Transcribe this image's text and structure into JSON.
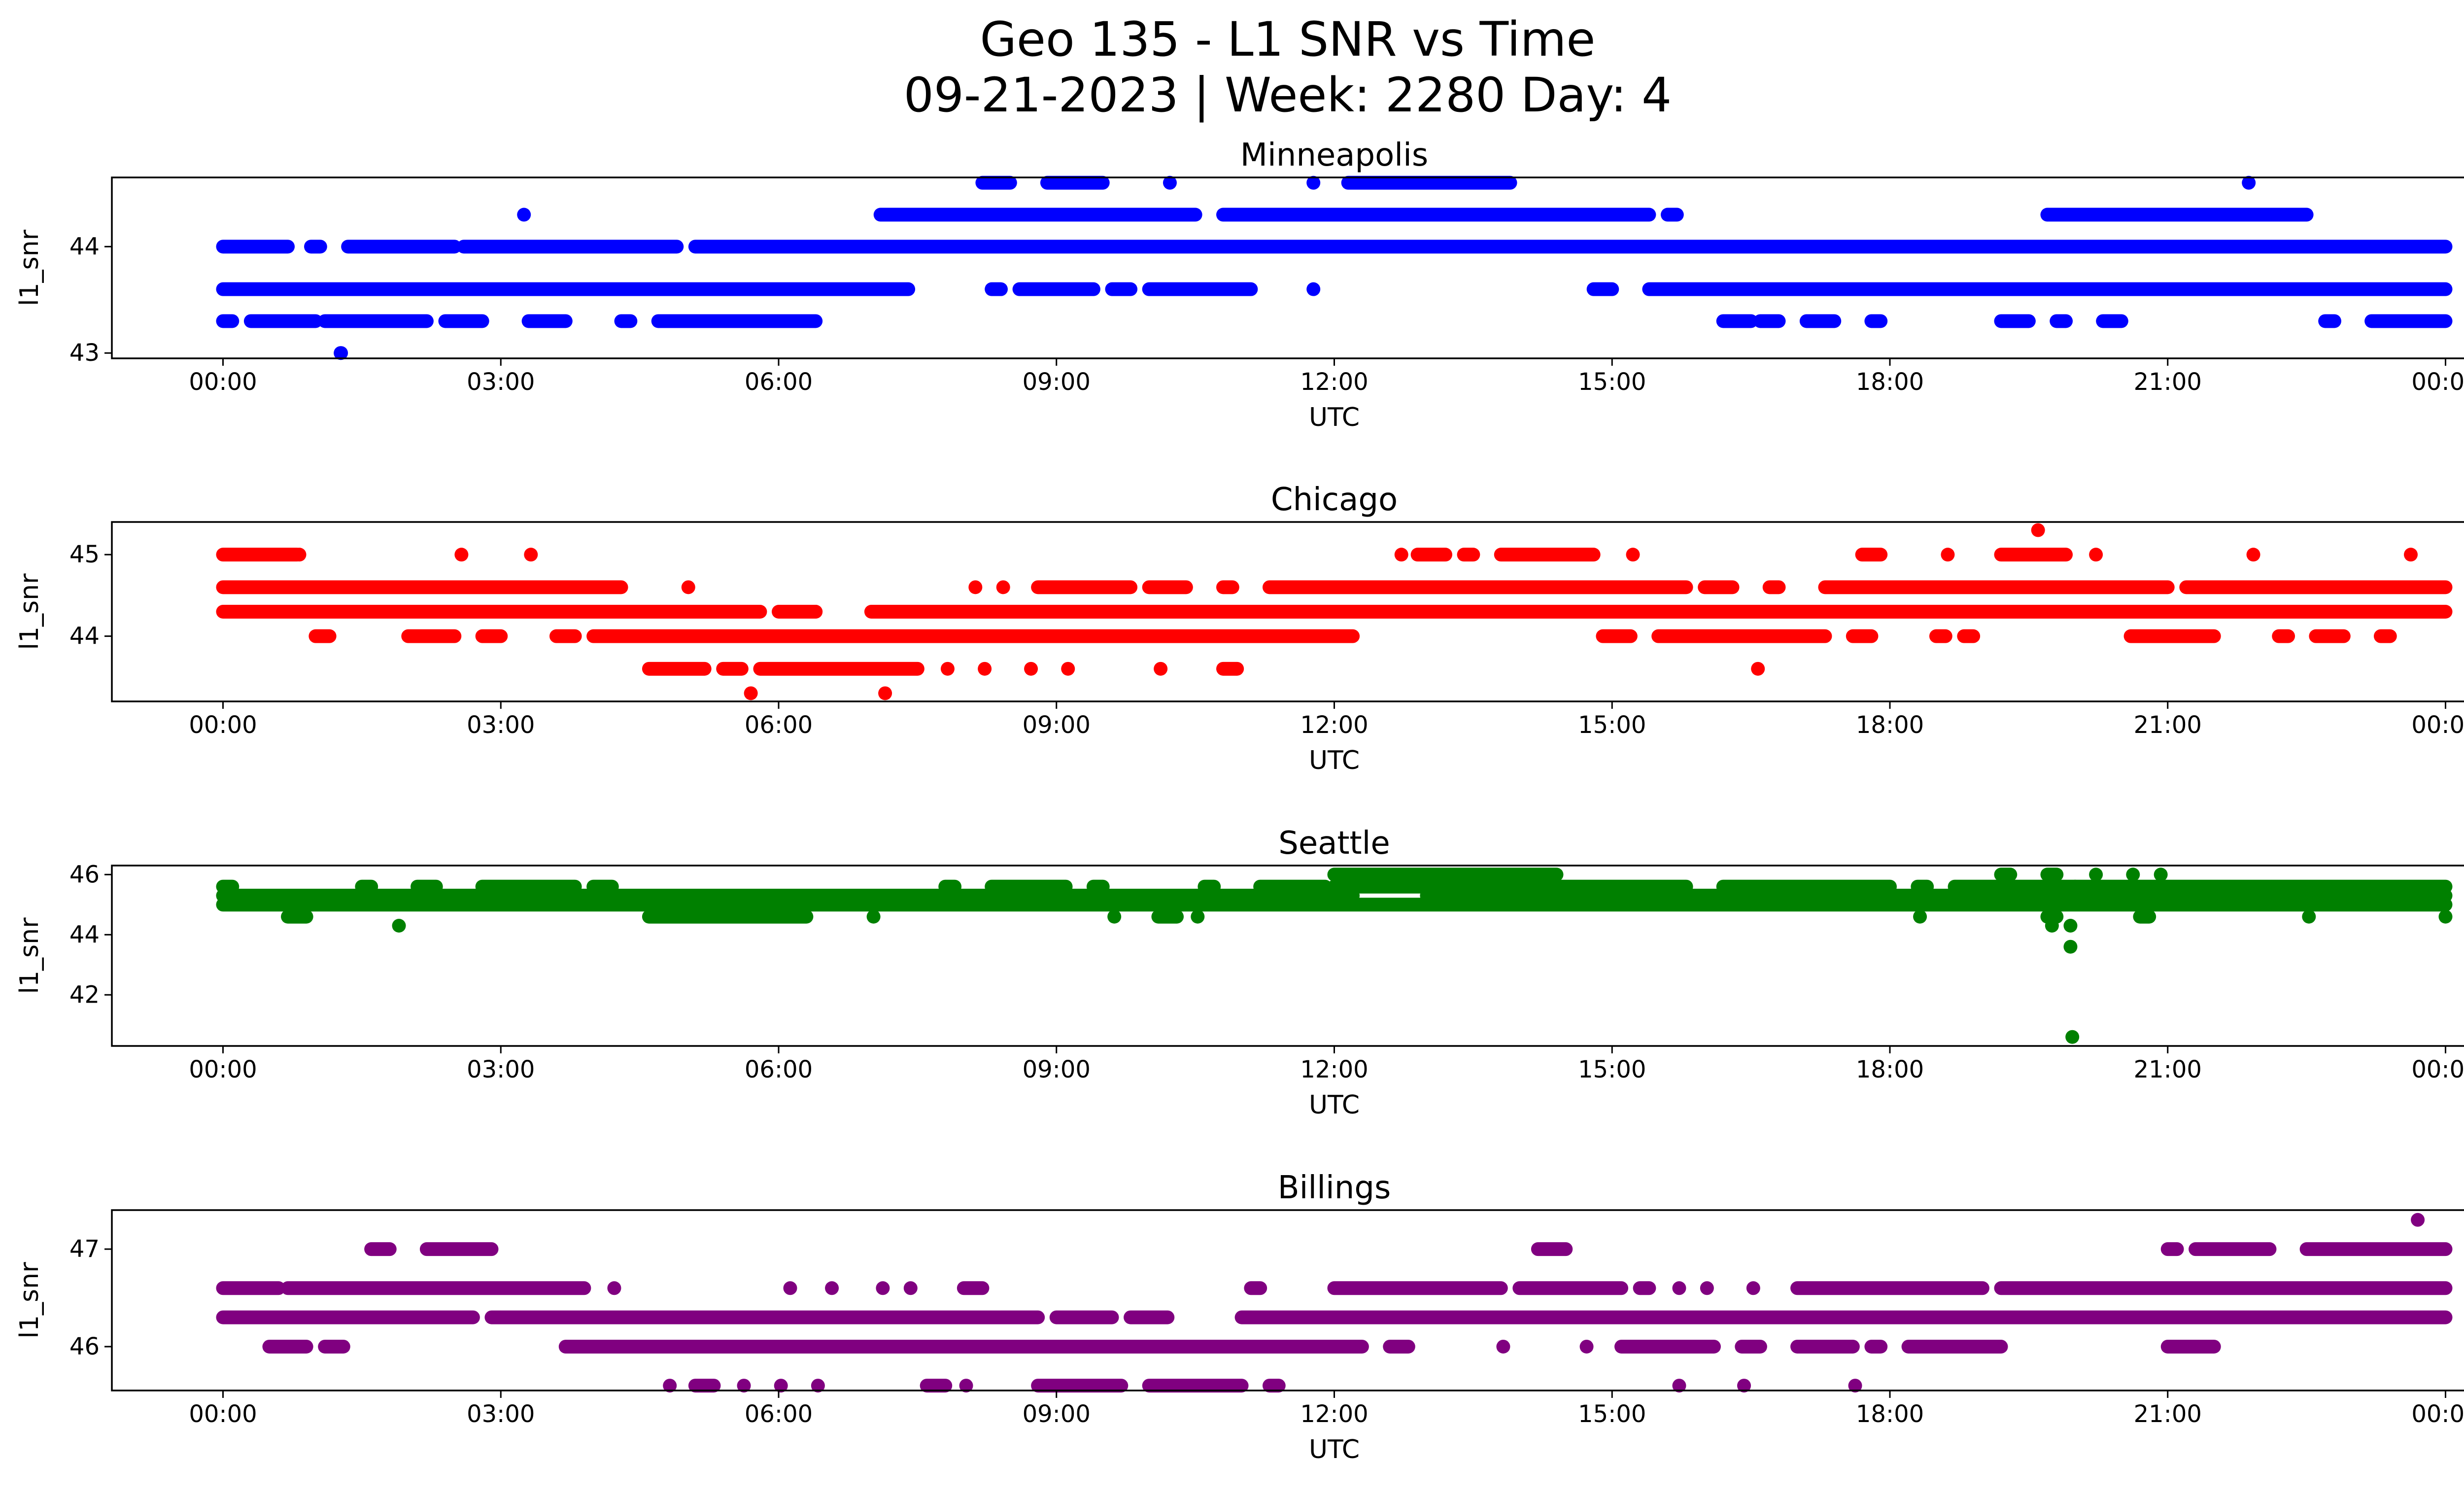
{
  "figure": {
    "title_line1": "Geo 135 - L1 SNR vs Time",
    "title_line2": "09-21-2023 | Week: 2280 Day: 4"
  },
  "chart_data": [
    {
      "type": "scatter",
      "title": "Minneapolis",
      "xlabel": "UTC",
      "ylabel": "l1_snr",
      "color": "#0000ff",
      "x_ticks": [
        "00:00",
        "03:00",
        "06:00",
        "09:00",
        "12:00",
        "15:00",
        "18:00",
        "21:00",
        "00:00"
      ],
      "xlim_hours": [
        -1.2,
        25.2
      ],
      "ylim": [
        42.95,
        44.65
      ],
      "y_ticks": [
        43,
        44
      ],
      "bands": [
        {
          "y": 44.0,
          "segments": [
            [
              0.0,
              0.7
            ],
            [
              0.95,
              1.05
            ],
            [
              1.35,
              2.5
            ],
            [
              2.6,
              4.9
            ],
            [
              5.1,
              24.0
            ]
          ]
        },
        {
          "y": 43.6,
          "segments": [
            [
              0.0,
              7.4
            ],
            [
              8.3,
              8.4
            ],
            [
              8.6,
              9.4
            ],
            [
              9.6,
              9.8
            ],
            [
              10.0,
              11.1
            ],
            [
              11.75,
              11.8
            ],
            [
              14.8,
              15.0
            ],
            [
              15.4,
              24.0
            ]
          ]
        },
        {
          "y": 43.3,
          "segments": [
            [
              0.0,
              0.1
            ],
            [
              0.3,
              1.0
            ],
            [
              1.1,
              2.2
            ],
            [
              2.4,
              2.8
            ],
            [
              3.3,
              3.7
            ],
            [
              4.3,
              4.4
            ],
            [
              4.7,
              6.4
            ],
            [
              16.2,
              16.5
            ],
            [
              16.6,
              16.8
            ],
            [
              17.1,
              17.4
            ],
            [
              17.8,
              17.9
            ],
            [
              19.2,
              19.5
            ],
            [
              19.8,
              19.9
            ],
            [
              20.3,
              20.5
            ],
            [
              22.7,
              22.8
            ],
            [
              23.2,
              24.0
            ]
          ]
        },
        {
          "y": 44.3,
          "segments": [
            [
              7.1,
              10.5
            ],
            [
              10.8,
              15.4
            ],
            [
              15.6,
              15.7
            ],
            [
              19.7,
              22.5
            ]
          ]
        },
        {
          "y": 44.6,
          "segments": [
            [
              8.2,
              8.5
            ],
            [
              8.9,
              9.5
            ],
            [
              10.2,
              10.25
            ],
            [
              11.75,
              11.8
            ],
            [
              12.15,
              13.9
            ],
            [
              21.85,
              21.9
            ]
          ]
        },
        {
          "y": 43.0,
          "segments": [
            [
              1.25,
              1.3
            ]
          ]
        }
      ],
      "points": [
        [
          3.25,
          44.3
        ],
        [
          1.27,
          43.0
        ]
      ]
    },
    {
      "type": "scatter",
      "title": "Chicago",
      "xlabel": "UTC",
      "ylabel": "l1_snr",
      "color": "#ff0000",
      "x_ticks": [
        "00:00",
        "03:00",
        "06:00",
        "09:00",
        "12:00",
        "15:00",
        "18:00",
        "21:00",
        "00:00"
      ],
      "xlim_hours": [
        -1.2,
        25.2
      ],
      "ylim": [
        43.2,
        45.4
      ],
      "y_ticks": [
        44,
        45
      ],
      "bands": [
        {
          "y": 44.6,
          "segments": [
            [
              0.0,
              4.3
            ],
            [
              5.0,
              5.05
            ],
            [
              8.1,
              8.15
            ],
            [
              8.4,
              8.45
            ],
            [
              8.8,
              9.8
            ],
            [
              10.0,
              10.4
            ],
            [
              10.8,
              10.9
            ],
            [
              11.3,
              15.8
            ],
            [
              16.0,
              16.3
            ],
            [
              16.7,
              16.8
            ],
            [
              17.3,
              21.0
            ],
            [
              21.2,
              24.0
            ]
          ]
        },
        {
          "y": 44.3,
          "segments": [
            [
              0.0,
              5.8
            ],
            [
              6.0,
              6.4
            ],
            [
              7.0,
              24.0
            ]
          ]
        },
        {
          "y": 44.0,
          "segments": [
            [
              1.0,
              1.15
            ],
            [
              2.0,
              2.5
            ],
            [
              2.8,
              3.0
            ],
            [
              3.6,
              3.8
            ],
            [
              4.0,
              12.2
            ],
            [
              14.9,
              15.2
            ],
            [
              15.5,
              17.3
            ],
            [
              17.6,
              17.8
            ],
            [
              18.5,
              18.6
            ],
            [
              18.8,
              18.9
            ],
            [
              20.6,
              21.5
            ],
            [
              22.2,
              22.3
            ],
            [
              22.6,
              22.9
            ],
            [
              23.3,
              23.4
            ]
          ]
        },
        {
          "y": 43.6,
          "segments": [
            [
              4.6,
              5.2
            ],
            [
              5.4,
              5.6
            ],
            [
              5.8,
              7.5
            ],
            [
              7.8,
              7.85
            ],
            [
              8.2,
              8.25
            ],
            [
              8.7,
              8.75
            ],
            [
              9.1,
              9.15
            ],
            [
              10.1,
              10.15
            ],
            [
              10.8,
              10.95
            ],
            [
              16.55,
              16.6
            ]
          ]
        },
        {
          "y": 45.0,
          "segments": [
            [
              0.0,
              0.8
            ],
            [
              0.8,
              0.85
            ],
            [
              2.55,
              2.6
            ],
            [
              3.3,
              3.35
            ],
            [
              12.7,
              12.75
            ],
            [
              12.9,
              13.2
            ],
            [
              13.4,
              13.5
            ],
            [
              13.8,
              14.8
            ],
            [
              15.2,
              15.25
            ],
            [
              17.7,
              17.9
            ],
            [
              18.6,
              18.65
            ],
            [
              19.2,
              19.9
            ],
            [
              20.2,
              20.25
            ],
            [
              21.9,
              21.95
            ],
            [
              23.6,
              23.65
            ]
          ]
        }
      ],
      "points": [
        [
          5.7,
          43.3
        ],
        [
          7.15,
          43.3
        ],
        [
          19.6,
          45.3
        ],
        [
          6.4,
          44.3
        ],
        [
          13.4,
          44.3
        ]
      ]
    },
    {
      "type": "scatter",
      "title": "Seattle",
      "xlabel": "UTC",
      "ylabel": "l1_snr",
      "color": "#008000",
      "x_ticks": [
        "00:00",
        "03:00",
        "06:00",
        "09:00",
        "12:00",
        "15:00",
        "18:00",
        "21:00",
        "00:00"
      ],
      "xlim_hours": [
        -1.2,
        25.2
      ],
      "ylim": [
        40.3,
        46.3
      ],
      "y_ticks": [
        42,
        44,
        46
      ],
      "bands": [
        {
          "y": 45.0,
          "segments": [
            [
              0.0,
              24.0
            ]
          ]
        },
        {
          "y": 45.3,
          "segments": [
            [
              0.0,
              12.2
            ],
            [
              13.0,
              24.0
            ]
          ]
        },
        {
          "y": 45.6,
          "segments": [
            [
              0.0,
              0.1
            ],
            [
              1.5,
              1.6
            ],
            [
              2.1,
              2.3
            ],
            [
              2.8,
              3.8
            ],
            [
              4.0,
              4.2
            ],
            [
              7.8,
              7.9
            ],
            [
              8.3,
              9.1
            ],
            [
              9.4,
              9.5
            ],
            [
              10.6,
              10.7
            ],
            [
              11.2,
              11.9
            ],
            [
              12.0,
              15.8
            ],
            [
              16.2,
              18.0
            ],
            [
              18.3,
              18.4
            ],
            [
              18.7,
              24.0
            ]
          ]
        },
        {
          "y": 44.6,
          "segments": [
            [
              0.7,
              0.9
            ],
            [
              4.6,
              6.3
            ],
            [
              7.0,
              7.05
            ],
            [
              9.6,
              9.65
            ],
            [
              10.1,
              10.3
            ],
            [
              10.5,
              10.55
            ],
            [
              18.3,
              18.35
            ],
            [
              19.7,
              19.8
            ],
            [
              20.7,
              20.8
            ],
            [
              22.5,
              22.55
            ],
            [
              24.0,
              24.0
            ]
          ]
        },
        {
          "y": 46.0,
          "segments": [
            [
              12.0,
              14.4
            ],
            [
              19.2,
              19.3
            ],
            [
              19.7,
              19.8
            ],
            [
              20.2,
              20.25
            ],
            [
              20.6,
              20.65
            ],
            [
              20.9,
              20.95
            ]
          ]
        }
      ],
      "points": [
        [
          1.9,
          44.3
        ],
        [
          19.75,
          44.3
        ],
        [
          19.95,
          44.3
        ],
        [
          19.95,
          43.6
        ],
        [
          19.97,
          40.6
        ],
        [
          20.0,
          45.6
        ]
      ]
    },
    {
      "type": "scatter",
      "title": "Billings",
      "xlabel": "UTC",
      "ylabel": "l1_snr",
      "color": "#800080",
      "x_ticks": [
        "00:00",
        "03:00",
        "06:00",
        "09:00",
        "12:00",
        "15:00",
        "18:00",
        "21:00",
        "00:00"
      ],
      "xlim_hours": [
        -1.2,
        25.2
      ],
      "ylim": [
        45.55,
        47.4
      ],
      "y_ticks": [
        46,
        47
      ],
      "bands": [
        {
          "y": 46.6,
          "segments": [
            [
              0.0,
              0.6
            ],
            [
              0.7,
              3.9
            ],
            [
              4.2,
              4.25
            ],
            [
              6.1,
              6.15
            ],
            [
              6.55,
              6.6
            ],
            [
              7.1,
              7.15
            ],
            [
              7.4,
              7.45
            ],
            [
              8.0,
              8.2
            ],
            [
              11.1,
              11.2
            ],
            [
              12.0,
              13.8
            ],
            [
              14.0,
              15.1
            ],
            [
              15.3,
              15.4
            ],
            [
              15.7,
              15.75
            ],
            [
              16.0,
              16.05
            ],
            [
              16.5,
              16.55
            ],
            [
              17.0,
              19.0
            ],
            [
              19.2,
              24.0
            ]
          ]
        },
        {
          "y": 46.3,
          "segments": [
            [
              0.0,
              2.7
            ],
            [
              2.9,
              8.8
            ],
            [
              9.0,
              9.6
            ],
            [
              9.8,
              10.2
            ],
            [
              11.0,
              24.0
            ]
          ]
        },
        {
          "y": 46.0,
          "segments": [
            [
              0.5,
              0.9
            ],
            [
              1.1,
              1.3
            ],
            [
              3.7,
              12.3
            ],
            [
              12.6,
              12.8
            ],
            [
              13.8,
              13.85
            ],
            [
              14.7,
              14.75
            ],
            [
              15.1,
              16.1
            ],
            [
              16.4,
              16.6
            ],
            [
              17.0,
              17.6
            ],
            [
              17.8,
              17.9
            ],
            [
              18.2,
              19.2
            ],
            [
              21.0,
              21.5
            ]
          ]
        },
        {
          "y": 47.0,
          "segments": [
            [
              1.6,
              1.8
            ],
            [
              2.2,
              2.9
            ],
            [
              14.2,
              14.5
            ],
            [
              21.0,
              21.1
            ],
            [
              21.3,
              22.1
            ],
            [
              22.5,
              24.0
            ]
          ]
        },
        {
          "y": 45.6,
          "segments": [
            [
              4.8,
              4.85
            ],
            [
              5.1,
              5.3
            ],
            [
              5.6,
              5.65
            ],
            [
              6.0,
              6.05
            ],
            [
              6.4,
              6.45
            ],
            [
              7.6,
              7.8
            ],
            [
              8.0,
              8.05
            ],
            [
              8.8,
              9.7
            ],
            [
              10.0,
              11.0
            ],
            [
              11.3,
              11.4
            ],
            [
              15.7,
              15.75
            ],
            [
              16.4,
              16.45
            ],
            [
              17.6,
              17.65
            ]
          ]
        }
      ],
      "points": [
        [
          23.7,
          47.3
        ]
      ]
    }
  ]
}
